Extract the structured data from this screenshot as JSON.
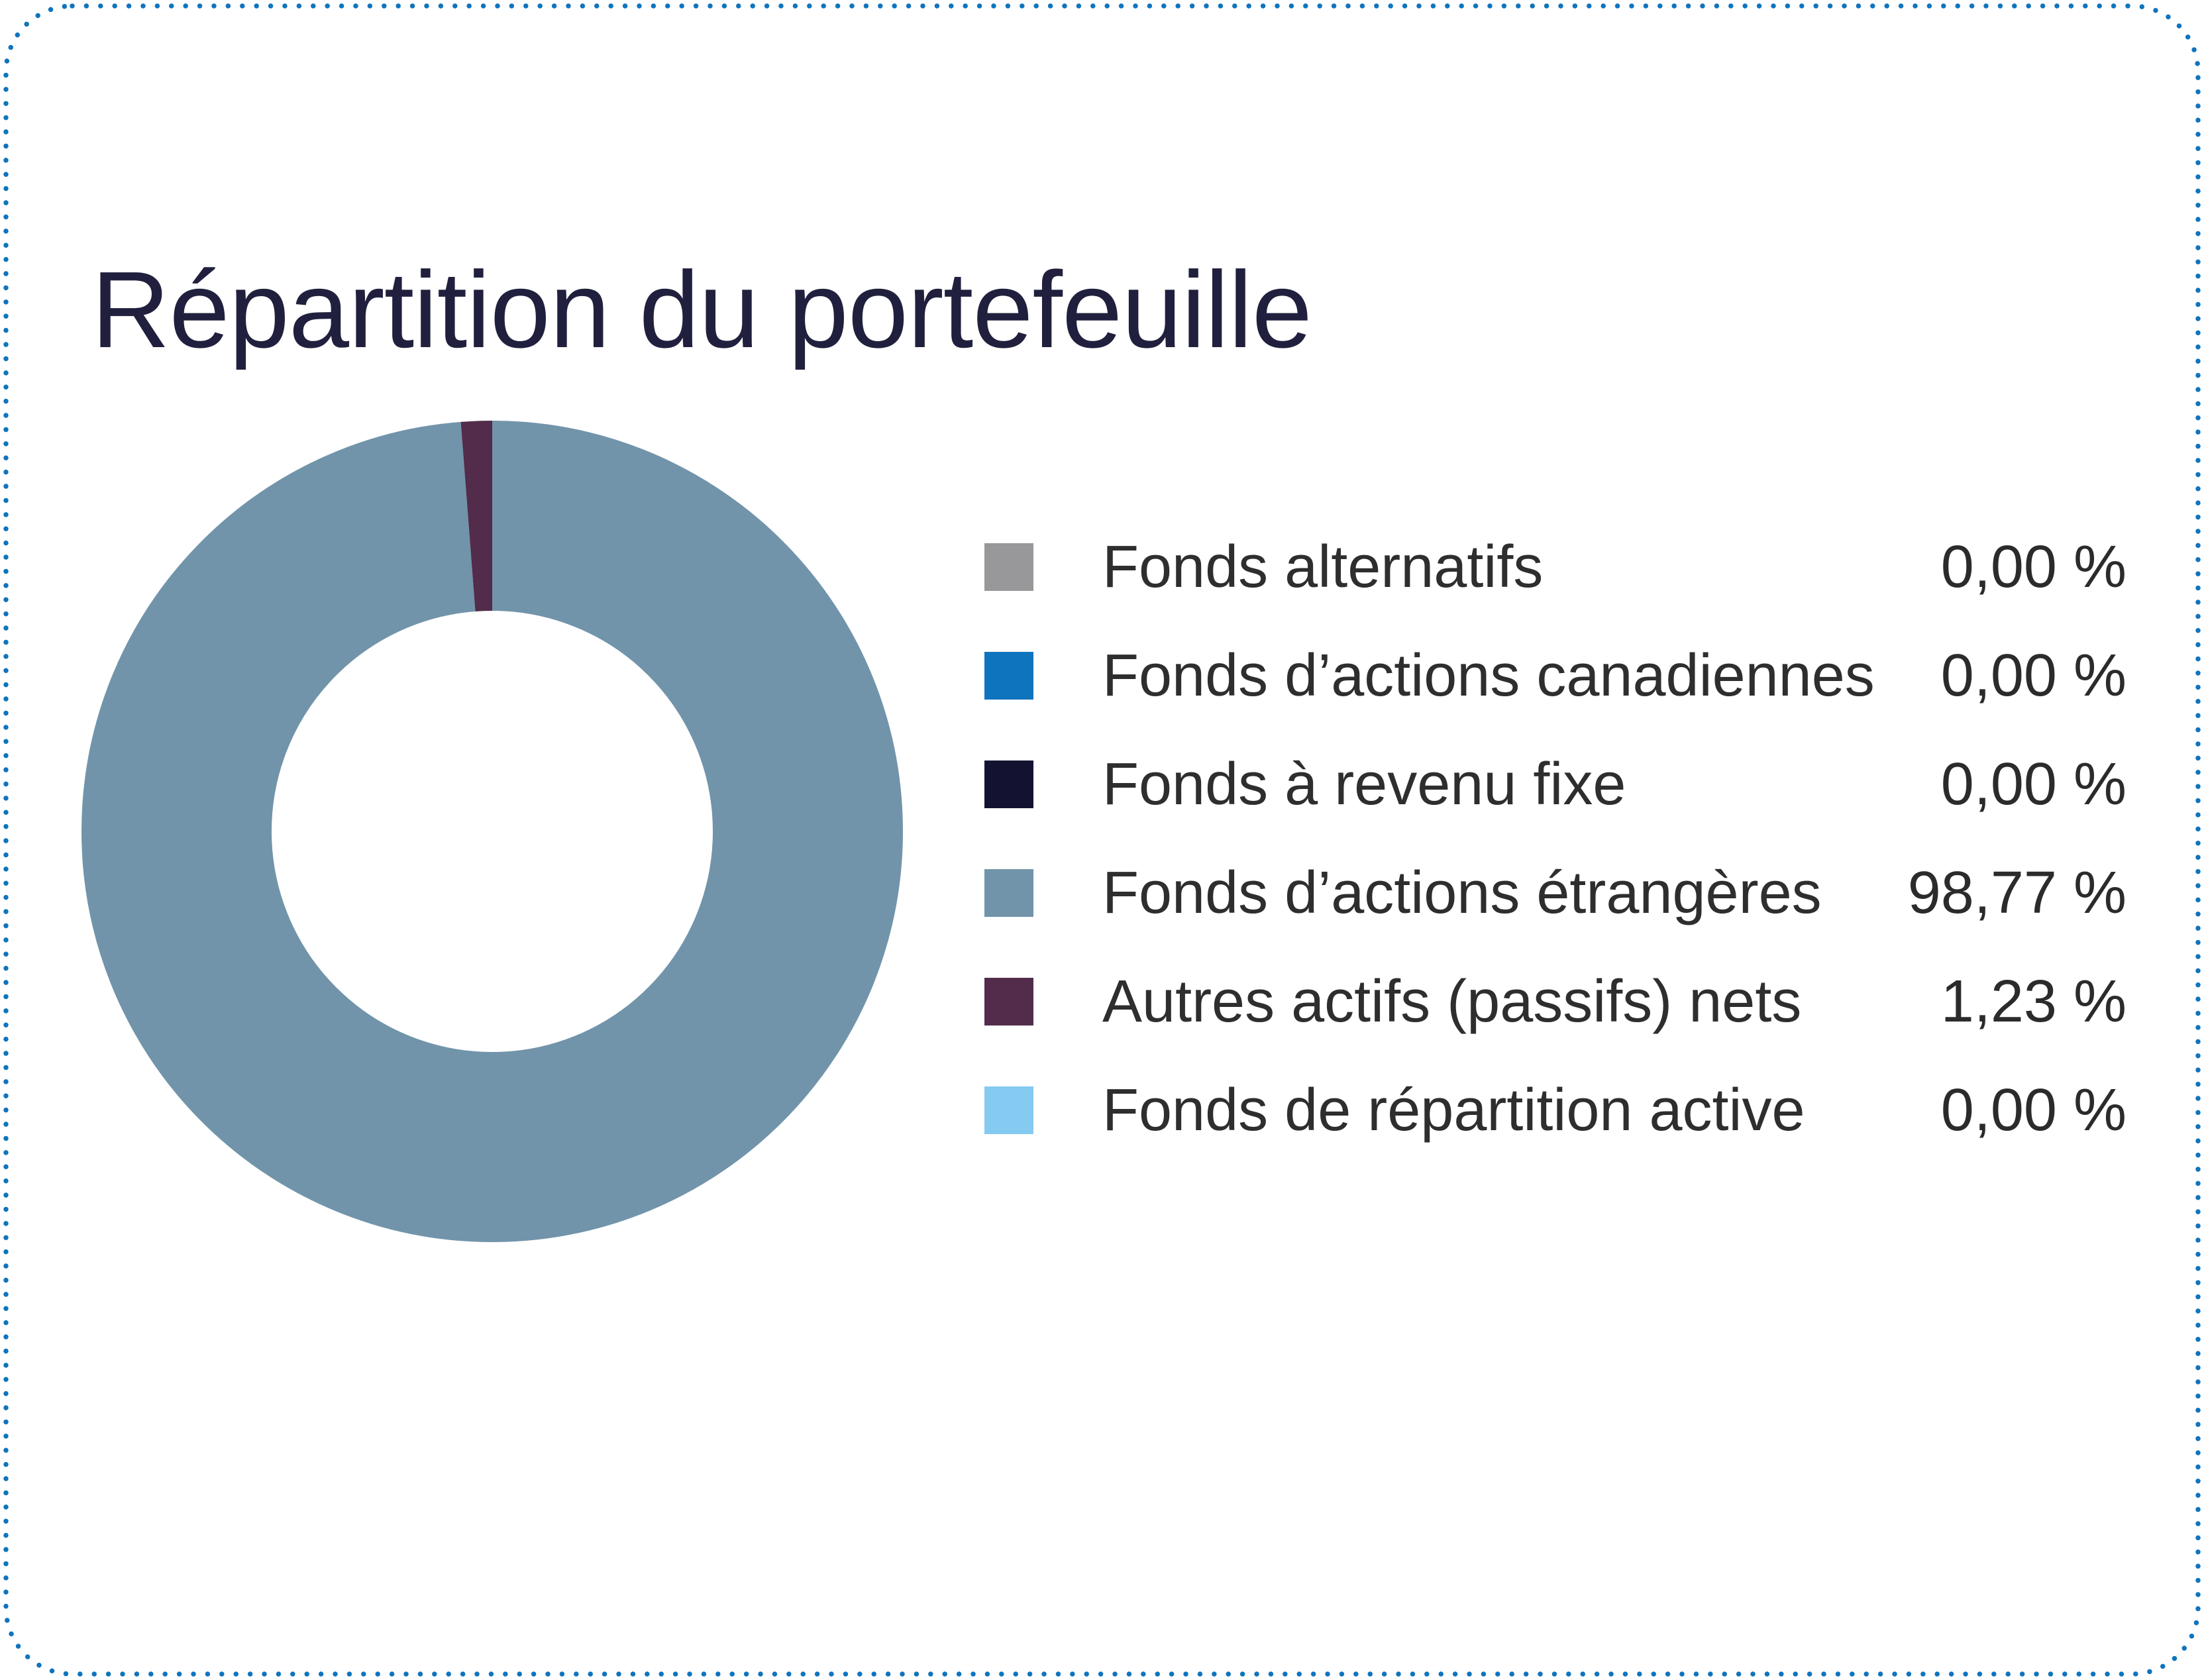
{
  "card": {
    "title": "Répartition du portefeuille"
  },
  "border": {
    "color": "#0f74bd"
  },
  "legend": {
    "items": [
      {
        "label": "Fonds alternatifs",
        "value": "0,00 %",
        "color": "#98989a"
      },
      {
        "label": "Fonds d’actions canadiennes",
        "value": "0,00 %",
        "color": "#0f74be"
      },
      {
        "label": "Fonds à revenu fixe",
        "value": "0,00 %",
        "color": "#131331"
      },
      {
        "label": "Fonds d’actions étrangères",
        "value": "98,77 %",
        "color": "#7194aa"
      },
      {
        "label": "Autres actifs (passifs) nets",
        "value": "1,23 %",
        "color": "#522c4a"
      },
      {
        "label": "Fonds de répartition active",
        "value": "0,00 %",
        "color": "#85caf1"
      }
    ]
  },
  "chart_data": {
    "type": "pie",
    "subtype": "donut",
    "title": "Répartition du portefeuille",
    "categories": [
      "Fonds alternatifs",
      "Fonds d’actions canadiennes",
      "Fonds à revenu fixe",
      "Fonds d’actions étrangères",
      "Autres actifs (passifs) nets",
      "Fonds de répartition active"
    ],
    "values": [
      0,
      0,
      0,
      98.77,
      1.23,
      0
    ],
    "unit": "%",
    "colors": [
      "#98989a",
      "#0f74be",
      "#131331",
      "#7194aa",
      "#522c4a",
      "#85caf1"
    ],
    "hole_ratio": 0.54,
    "start_angle": "12-oclock",
    "direction": "clockwise",
    "legend_position": "right",
    "grid": false
  }
}
